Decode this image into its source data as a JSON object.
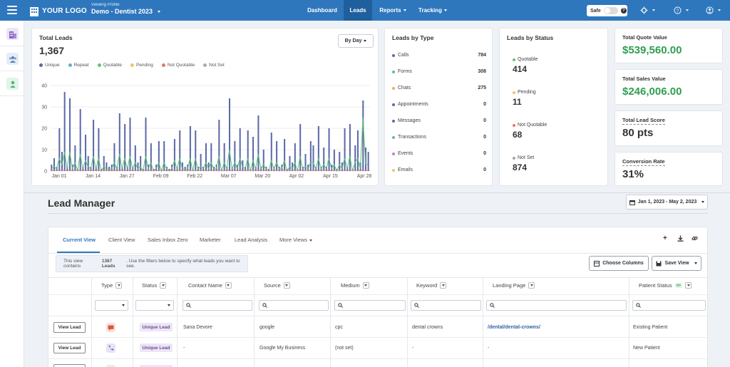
{
  "header": {
    "logo_text": "YOUR LOGO",
    "profile_small": "Viewing Profile",
    "profile_name": "Demo - Dentist 2023",
    "nav": [
      "Dashboard",
      "Leads",
      "Reports",
      "Tracking"
    ],
    "active_nav": "Leads",
    "safe_label": "Safe",
    "accent": "#2e77bd"
  },
  "total_leads": {
    "title": "Total Leads",
    "value": "1,367",
    "by_day": "By Day",
    "legend": [
      {
        "label": "Unique",
        "color": "#5b69a8"
      },
      {
        "label": "Repeat",
        "color": "#65b0c9"
      },
      {
        "label": "Quotable",
        "color": "#5ec27a"
      },
      {
        "label": "Pending",
        "color": "#f0c36a"
      },
      {
        "label": "Not Quotable",
        "color": "#e8746f"
      },
      {
        "label": "Not Set",
        "color": "#aaaaaa"
      }
    ]
  },
  "chart_data": {
    "type": "bar",
    "title": "Total Leads",
    "x_ticks": [
      "Jan 01",
      "Jan 14",
      "Jan 27",
      "Feb 09",
      "Feb 22",
      "Mar 07",
      "Mar 20",
      "Apr 02",
      "Apr 15",
      "Apr 28"
    ],
    "y_ticks": [
      0,
      10,
      20,
      30,
      40
    ],
    "ylim": [
      0,
      40
    ],
    "series": [
      {
        "name": "Unique",
        "color": "#5b69a8",
        "values": [
          3,
          6,
          2,
          20,
          9,
          37,
          2,
          34,
          3,
          12,
          1,
          29,
          2,
          17,
          7,
          2,
          24,
          2,
          20,
          1,
          7,
          4,
          2,
          3,
          13,
          2,
          27,
          2,
          22,
          2,
          25,
          2,
          12,
          4,
          7,
          1,
          25,
          3,
          13,
          1,
          3,
          14,
          1,
          14,
          2,
          1,
          3,
          15,
          2,
          19,
          4,
          2,
          3,
          21,
          1,
          19,
          2,
          8,
          2,
          13,
          4,
          13,
          2,
          3,
          24,
          1,
          13,
          2,
          34,
          2,
          14,
          3,
          20,
          5,
          2,
          19,
          1,
          16,
          2,
          26,
          2,
          10,
          2,
          1,
          18,
          2,
          14,
          2,
          3,
          15,
          1,
          7,
          4,
          13,
          1,
          22,
          2,
          8,
          3,
          14,
          12,
          2,
          21,
          2,
          11,
          2,
          20,
          3,
          10,
          1,
          9,
          4,
          20,
          2,
          22,
          1,
          12,
          19,
          4,
          33,
          11,
          9
        ]
      },
      {
        "name": "Quotable",
        "color": "#5ec27a",
        "values": [
          1,
          2,
          1,
          6,
          3,
          9,
          1,
          9,
          1,
          4,
          0,
          8,
          1,
          5,
          2,
          1,
          7,
          1,
          6,
          0,
          2,
          1,
          1,
          1,
          4,
          1,
          8,
          1,
          6,
          1,
          7,
          1,
          4,
          1,
          2,
          0,
          7,
          1,
          4,
          0,
          1,
          4,
          0,
          4,
          1,
          0,
          1,
          5,
          1,
          6,
          1,
          1,
          1,
          6,
          0,
          6,
          1,
          2,
          1,
          4,
          1,
          4,
          1,
          1,
          7,
          0,
          4,
          1,
          10,
          1,
          4,
          1,
          6,
          2,
          1,
          6,
          0,
          5,
          1,
          8,
          1,
          3,
          1,
          0,
          5,
          1,
          4,
          1,
          1,
          5,
          0,
          2,
          1,
          4,
          0,
          7,
          1,
          2,
          1,
          4,
          4,
          1,
          6,
          1,
          3,
          1,
          6,
          1,
          3,
          0,
          3,
          1,
          6,
          1,
          7,
          0,
          4,
          6,
          1,
          25,
          3,
          3
        ]
      }
    ]
  },
  "leads_by_type": {
    "title": "Leads by Type",
    "items": [
      {
        "label": "Calls",
        "value": "784",
        "color": "#5b69a8"
      },
      {
        "label": "Forms",
        "value": "308",
        "color": "#5ec27a"
      },
      {
        "label": "Chats",
        "value": "275",
        "color": "#f0a868"
      },
      {
        "label": "Appointments",
        "value": "0",
        "color": "#5b69a8"
      },
      {
        "label": "Messages",
        "value": "0",
        "color": "#5b69a8"
      },
      {
        "label": "Transactions",
        "value": "0",
        "color": "#65b0c9"
      },
      {
        "label": "Events",
        "value": "0",
        "color": "#c37ad1"
      },
      {
        "label": "Emails",
        "value": "0",
        "color": "#f0c36a"
      }
    ]
  },
  "leads_by_status": {
    "title": "Leads by Status",
    "items": [
      {
        "label": "Quotable",
        "value": "414",
        "color": "#5ec27a"
      },
      {
        "label": "Pending",
        "value": "11",
        "color": "#f0c36a"
      },
      {
        "label": "Not Quotable",
        "value": "68",
        "color": "#e8746f"
      },
      {
        "label": "Not Set",
        "value": "874",
        "color": "#9aa5b8"
      }
    ]
  },
  "kpis": {
    "quote_title": "Total Quote Value",
    "quote_value": "$539,560.00",
    "sales_title": "Total Sales Value",
    "sales_value": "$246,006.00",
    "score_title": "Total Lead Score",
    "score_value": "80 pts",
    "conv_title": "Conversion Rate",
    "conv_value": "31%"
  },
  "lead_manager": {
    "title": "Lead Manager",
    "date_range": "Jan 1, 2023 - May 2, 2023",
    "tabs": [
      "Current View",
      "Client View",
      "Sales Inbox Zero",
      "Marketer",
      "Lead Analysis",
      "More Views"
    ],
    "info_prefix": "This view contains ",
    "info_bold": "1367 Leads",
    "info_suffix": ". Use the filters below to specify what leads you want to see.",
    "choose_columns": "Choose Columns",
    "save_view": "Save View",
    "columns": {
      "type": "Type",
      "status": "Status",
      "contact": "Contact Name",
      "source": "Source",
      "medium": "Medium",
      "keyword": "Keyword",
      "landing": "Landing Page",
      "patient": "Patient Status",
      "patient_badge": "NF"
    },
    "view_lead": "View Lead",
    "rows": [
      {
        "status": "Unique Lead",
        "contact": "Sana Devore",
        "source": "google",
        "medium": "cpc",
        "keyword": "dental crowns",
        "landing": "/dental/dental-crowns/",
        "patient": "Existing Patient"
      },
      {
        "status": "Unique Lead",
        "contact": "-",
        "source": "Google My Business",
        "medium": "(not set)",
        "keyword": "-",
        "landing": "-",
        "patient": "New Patient"
      }
    ]
  }
}
